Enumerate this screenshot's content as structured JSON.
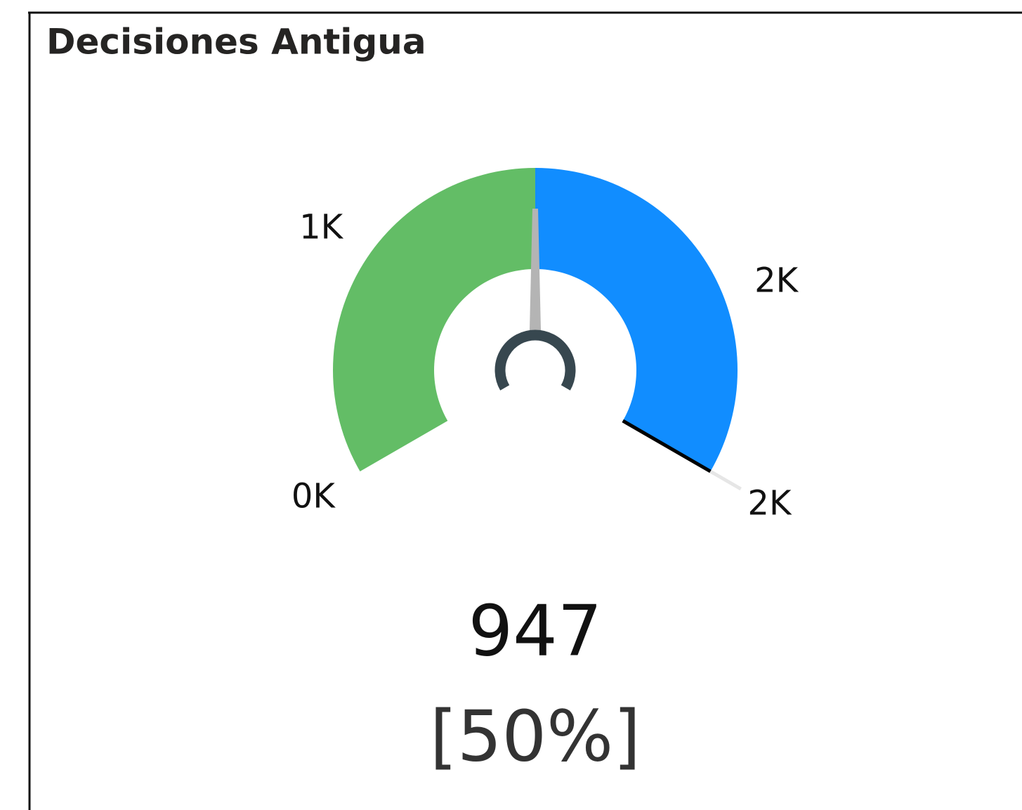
{
  "chart_data": {
    "type": "gauge",
    "title": "Decisiones Antigua",
    "values": [
      947
    ],
    "value_labels": [
      "947"
    ],
    "percent": {
      "value": 50,
      "label": "[50%]"
    },
    "ylim": [
      0,
      1894
    ],
    "yticks": [
      {
        "value": 0,
        "label": "0K"
      },
      {
        "value": 500,
        "label": "1K"
      },
      {
        "value": 1500,
        "label": "2K"
      }
    ],
    "target": {
      "value": 1894,
      "label": "2K"
    },
    "colors": {
      "fill": "#63bd66",
      "remaining": "#118dff",
      "needle": "#b4b4b4",
      "hub": "#37474f",
      "target": "#000000"
    }
  }
}
